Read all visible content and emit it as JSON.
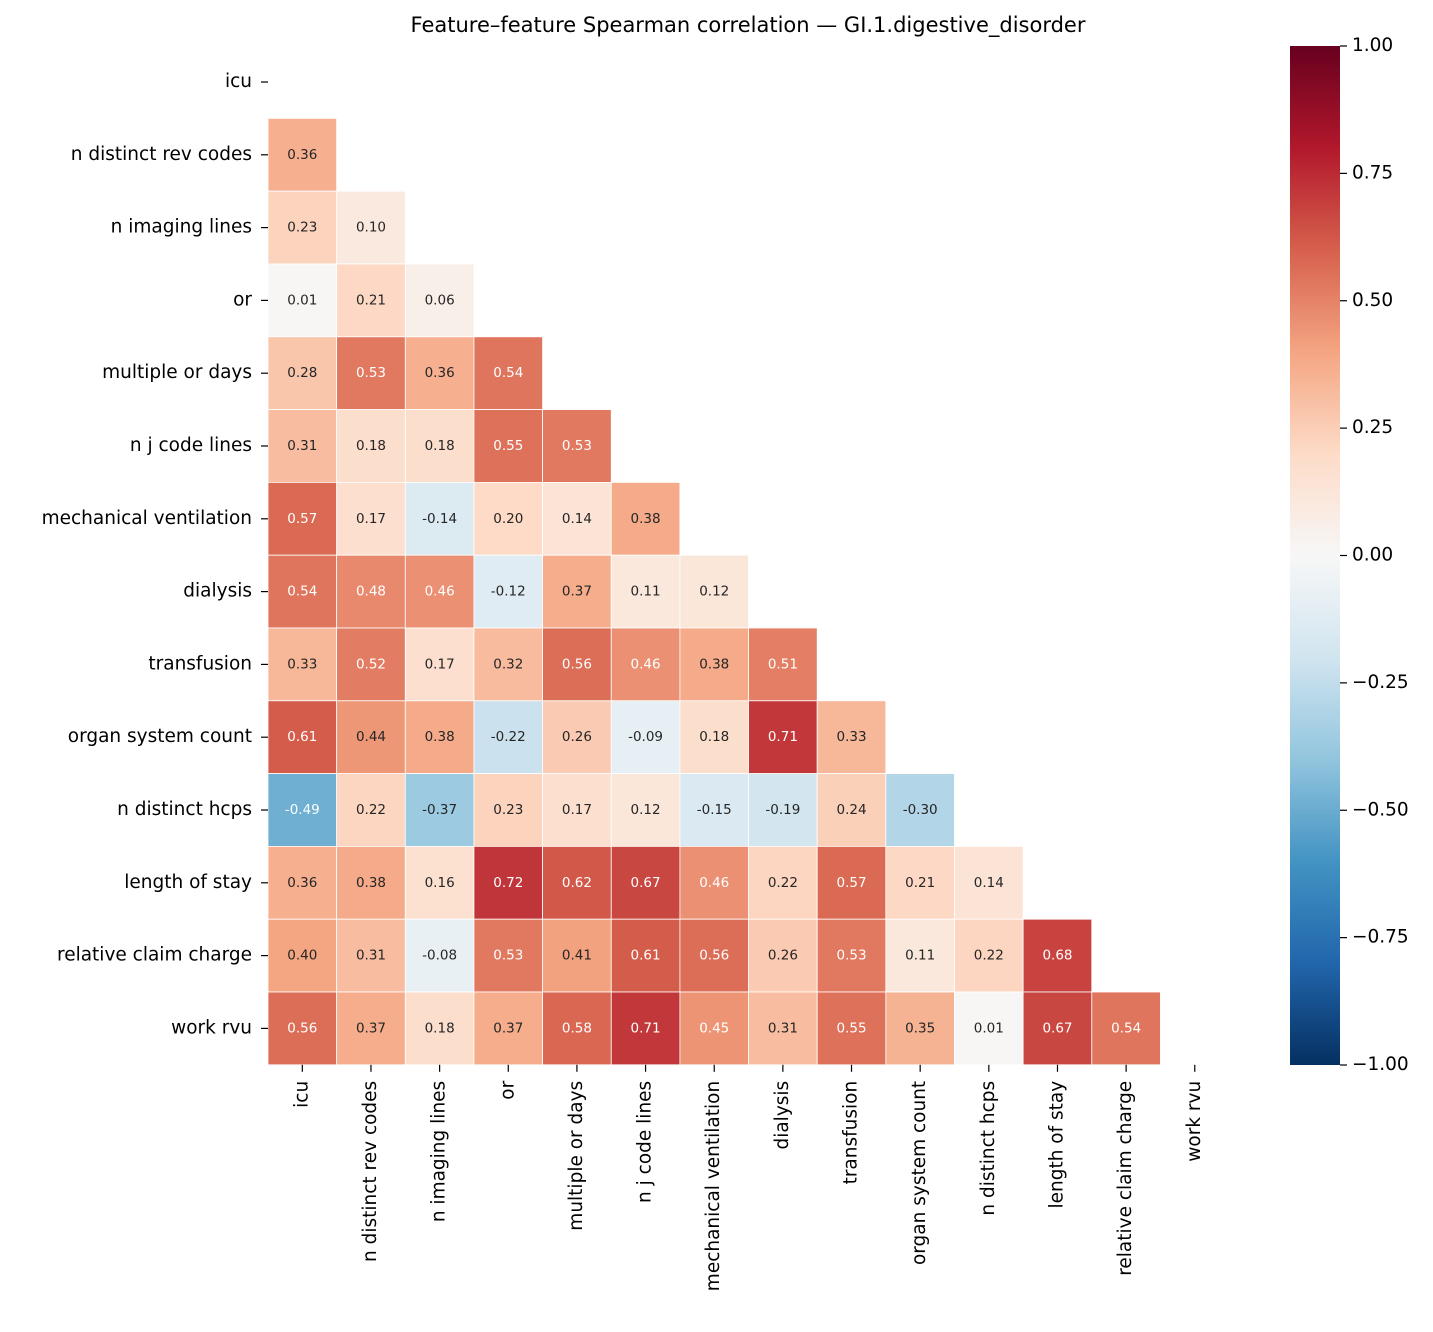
{
  "chart_data": {
    "type": "heatmap",
    "title": "Feature–feature Spearman correlation — GI.1.digestive_disorder",
    "categories": [
      "icu",
      "n distinct rev codes",
      "n imaging lines",
      "or",
      "multiple or days",
      "n j code lines",
      "mechanical ventilation",
      "dialysis",
      "transfusion",
      "organ system count",
      "n distinct hcps",
      "length of stay",
      "relative claim charge",
      "work rvu"
    ],
    "values": [
      [
        null,
        null,
        null,
        null,
        null,
        null,
        null,
        null,
        null,
        null,
        null,
        null,
        null,
        null
      ],
      [
        0.36,
        null,
        null,
        null,
        null,
        null,
        null,
        null,
        null,
        null,
        null,
        null,
        null,
        null
      ],
      [
        0.23,
        0.1,
        null,
        null,
        null,
        null,
        null,
        null,
        null,
        null,
        null,
        null,
        null,
        null
      ],
      [
        0.01,
        0.21,
        0.06,
        null,
        null,
        null,
        null,
        null,
        null,
        null,
        null,
        null,
        null,
        null
      ],
      [
        0.28,
        0.53,
        0.36,
        0.54,
        null,
        null,
        null,
        null,
        null,
        null,
        null,
        null,
        null,
        null
      ],
      [
        0.31,
        0.18,
        0.18,
        0.55,
        0.53,
        null,
        null,
        null,
        null,
        null,
        null,
        null,
        null,
        null
      ],
      [
        0.57,
        0.17,
        -0.14,
        0.2,
        0.14,
        0.38,
        null,
        null,
        null,
        null,
        null,
        null,
        null,
        null
      ],
      [
        0.54,
        0.48,
        0.46,
        -0.12,
        0.37,
        0.11,
        0.12,
        null,
        null,
        null,
        null,
        null,
        null,
        null
      ],
      [
        0.33,
        0.52,
        0.17,
        0.32,
        0.56,
        0.46,
        0.38,
        0.51,
        null,
        null,
        null,
        null,
        null,
        null
      ],
      [
        0.61,
        0.44,
        0.38,
        -0.22,
        0.26,
        -0.09,
        0.18,
        0.71,
        0.33,
        null,
        null,
        null,
        null,
        null
      ],
      [
        -0.49,
        0.22,
        -0.37,
        0.23,
        0.17,
        0.12,
        -0.15,
        -0.19,
        0.24,
        -0.3,
        null,
        null,
        null,
        null
      ],
      [
        0.36,
        0.38,
        0.16,
        0.72,
        0.62,
        0.67,
        0.46,
        0.22,
        0.57,
        0.21,
        0.14,
        null,
        null,
        null
      ],
      [
        0.4,
        0.31,
        -0.08,
        0.53,
        0.41,
        0.61,
        0.56,
        0.26,
        0.53,
        0.11,
        0.22,
        0.68,
        null,
        null
      ],
      [
        0.56,
        0.37,
        0.18,
        0.37,
        0.58,
        0.71,
        0.45,
        0.31,
        0.55,
        0.35,
        0.01,
        0.67,
        0.54,
        null
      ]
    ],
    "value_labels": [
      [
        null,
        null,
        null,
        null,
        null,
        null,
        null,
        null,
        null,
        null,
        null,
        null,
        null,
        null
      ],
      [
        "0.36",
        null,
        null,
        null,
        null,
        null,
        null,
        null,
        null,
        null,
        null,
        null,
        null,
        null
      ],
      [
        "0.23",
        "0.10",
        null,
        null,
        null,
        null,
        null,
        null,
        null,
        null,
        null,
        null,
        null,
        null
      ],
      [
        "0.01",
        "0.21",
        "0.06",
        null,
        null,
        null,
        null,
        null,
        null,
        null,
        null,
        null,
        null,
        null
      ],
      [
        "0.28",
        "0.53",
        "0.36",
        "0.54",
        null,
        null,
        null,
        null,
        null,
        null,
        null,
        null,
        null,
        null
      ],
      [
        "0.31",
        "0.18",
        "0.18",
        "0.55",
        "0.53",
        null,
        null,
        null,
        null,
        null,
        null,
        null,
        null,
        null
      ],
      [
        "0.57",
        "0.17",
        "-0.14",
        "0.20",
        "0.14",
        "0.38",
        null,
        null,
        null,
        null,
        null,
        null,
        null,
        null
      ],
      [
        "0.54",
        "0.48",
        "0.46",
        "-0.12",
        "0.37",
        "0.11",
        "0.12",
        null,
        null,
        null,
        null,
        null,
        null,
        null
      ],
      [
        "0.33",
        "0.52",
        "0.17",
        "0.32",
        "0.56",
        "0.46",
        "0.38",
        "0.51",
        null,
        null,
        null,
        null,
        null,
        null
      ],
      [
        "0.61",
        "0.44",
        "0.38",
        "-0.22",
        "0.26",
        "-0.09",
        "0.18",
        "0.71",
        "0.33",
        null,
        null,
        null,
        null,
        null
      ],
      [
        "-0.49",
        "0.22",
        "-0.37",
        "0.23",
        "0.17",
        "0.12",
        "-0.15",
        "-0.19",
        "0.24",
        "-0.30",
        null,
        null,
        null,
        null
      ],
      [
        "0.36",
        "0.38",
        "0.16",
        "0.72",
        "0.62",
        "0.67",
        "0.46",
        "0.22",
        "0.57",
        "0.21",
        "0.14",
        null,
        null,
        null
      ],
      [
        "0.40",
        "0.31",
        "-0.08",
        "0.53",
        "0.41",
        "0.61",
        "0.56",
        "0.26",
        "0.53",
        "0.11",
        "0.22",
        "0.68",
        null,
        null
      ],
      [
        "0.56",
        "0.37",
        "0.18",
        "0.37",
        "0.58",
        "0.71",
        "0.45",
        "0.31",
        "0.55",
        "0.35",
        "0.01",
        "0.67",
        "0.54",
        null
      ]
    ],
    "colorscale": [
      "#053061",
      "#2166ac",
      "#4393c3",
      "#92c5de",
      "#d1e5f0",
      "#f7f7f7",
      "#fddbc7",
      "#f4a582",
      "#d6604d",
      "#b2182b",
      "#67001f"
    ],
    "clim": [
      -1,
      1
    ],
    "cticks": [
      {
        "value": -1,
        "label": "−1.00"
      },
      {
        "value": -0.75,
        "label": "−0.75"
      },
      {
        "value": -0.5,
        "label": "−0.50"
      },
      {
        "value": -0.25,
        "label": "−0.25"
      },
      {
        "value": 0,
        "label": "0.00"
      },
      {
        "value": 0.25,
        "label": "0.25"
      },
      {
        "value": 0.5,
        "label": "0.50"
      },
      {
        "value": 0.75,
        "label": "0.75"
      },
      {
        "value": 1,
        "label": "1.00"
      }
    ]
  }
}
